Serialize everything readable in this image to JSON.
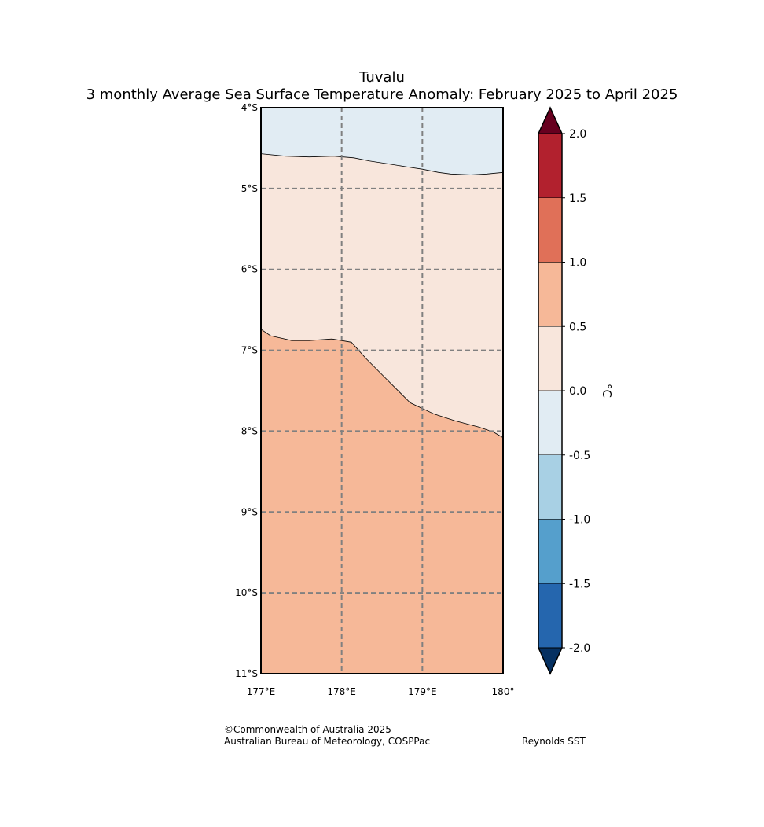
{
  "title": "Tuvalu",
  "subtitle": "3 monthly Average Sea Surface Temperature Anomaly: February 2025 to April 2025",
  "map": {
    "lon_range": [
      177,
      180
    ],
    "lat_range": [
      -11,
      -4
    ],
    "lon_ticks": [
      "177°E",
      "178°E",
      "179°E",
      "180°"
    ],
    "lat_ticks": [
      "4°S",
      "5°S",
      "6°S",
      "7°S",
      "8°S",
      "9°S",
      "10°S",
      "11°S"
    ],
    "gridlines": "dashed grey at each 1° of latitude and longitude",
    "regions": [
      {
        "range": "-0.5 to 0.0",
        "color": "#e1ecf3",
        "location": "northern strip"
      },
      {
        "range": "0.0 to 0.5",
        "color": "#f8e6dc",
        "location": "central band"
      },
      {
        "range": "0.5 to 1.0",
        "color": "#f6b898",
        "location": "southern area"
      }
    ],
    "contour_0_0": [
      [
        177.0,
        -4.57
      ],
      [
        177.3,
        -4.6
      ],
      [
        177.6,
        -4.61
      ],
      [
        177.9,
        -4.6
      ],
      [
        178.15,
        -4.62
      ],
      [
        178.35,
        -4.66
      ],
      [
        178.55,
        -4.69
      ],
      [
        178.8,
        -4.73
      ],
      [
        179.0,
        -4.76
      ],
      [
        179.2,
        -4.8
      ],
      [
        179.35,
        -4.82
      ],
      [
        179.6,
        -4.83
      ],
      [
        179.8,
        -4.82
      ],
      [
        180.0,
        -4.8
      ]
    ],
    "contour_0_5": [
      [
        177.0,
        -6.74
      ],
      [
        177.12,
        -6.82
      ],
      [
        177.25,
        -6.85
      ],
      [
        177.38,
        -6.88
      ],
      [
        177.6,
        -6.88
      ],
      [
        177.88,
        -6.86
      ],
      [
        178.0,
        -6.88
      ],
      [
        178.12,
        -6.9
      ],
      [
        178.3,
        -7.1
      ],
      [
        178.55,
        -7.35
      ],
      [
        178.85,
        -7.65
      ],
      [
        179.0,
        -7.72
      ],
      [
        179.15,
        -7.79
      ],
      [
        179.4,
        -7.87
      ],
      [
        179.7,
        -7.95
      ],
      [
        179.88,
        -8.01
      ],
      [
        180.0,
        -8.08
      ]
    ]
  },
  "colorbar": {
    "unit": "°C",
    "ticks": [
      "2.0",
      "1.5",
      "1.0",
      "0.5",
      "0.0",
      "-0.5",
      "-1.0",
      "-1.5",
      "-2.0"
    ],
    "bounds": [
      2.0,
      1.5,
      1.0,
      0.5,
      0.0,
      -0.5,
      -1.0,
      -1.5,
      -2.0
    ],
    "colors": [
      "#b2212e",
      "#e07058",
      "#f6b898",
      "#f8e6dc",
      "#e1ecf3",
      "#a8d0e4",
      "#559fcc",
      "#2566ae"
    ],
    "extend_max_color": "#67001f",
    "extend_min_color": "#053061"
  },
  "footer": {
    "copyright": "©Commonwealth of Australia 2025",
    "agency": "Australian Bureau of Meteorology, COSPPac",
    "source": "Reynolds SST"
  }
}
